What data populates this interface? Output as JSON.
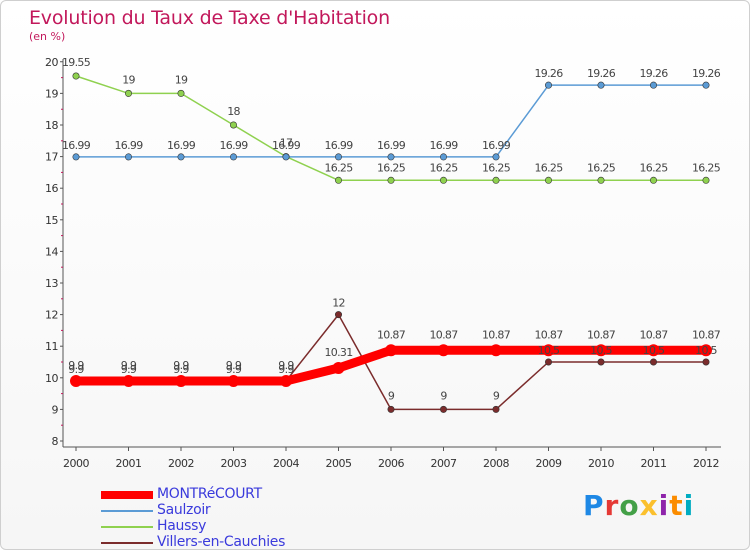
{
  "header": {
    "title": "Evolution du Taux de Taxe d'Habitation",
    "subtitle": "(en %)"
  },
  "chart_data": {
    "type": "line",
    "x": [
      "2000",
      "2001",
      "2002",
      "2003",
      "2004",
      "2005",
      "2006",
      "2007",
      "2008",
      "2009",
      "2010",
      "2011",
      "2012"
    ],
    "ylim": [
      8,
      20
    ],
    "yticks": [
      "8",
      "9",
      "10",
      "11",
      "12",
      "13",
      "14",
      "15",
      "16",
      "17",
      "18",
      "19",
      "20"
    ],
    "grid": false,
    "legend_position": "bottom-left",
    "series": [
      {
        "name": "MONTRéCOURT",
        "color": "#ff0000",
        "values": [
          9.9,
          9.9,
          9.9,
          9.9,
          9.9,
          10.31,
          10.87,
          10.87,
          10.87,
          10.87,
          10.87,
          10.87,
          10.87
        ],
        "labels": [
          "9.9",
          "9.9",
          "9.9",
          "9.9",
          "9.9",
          "10.31",
          "10.87",
          "10.87",
          "10.87",
          "10.87",
          "10.87",
          "10.87",
          "10.87"
        ]
      },
      {
        "name": "Saulzoir",
        "color": "#5b9bd5",
        "values": [
          16.99,
          16.99,
          16.99,
          16.99,
          16.99,
          16.99,
          16.99,
          16.99,
          16.99,
          19.26,
          19.26,
          19.26,
          19.26
        ],
        "labels": [
          "16.99",
          "16.99",
          "16.99",
          "16.99",
          "16.99",
          "16.99",
          "16.99",
          "16.99",
          "16.99",
          "19.26",
          "19.26",
          "19.26",
          "19.26"
        ]
      },
      {
        "name": "Haussy",
        "color": "#8fd14f",
        "values": [
          19.55,
          19,
          19,
          18,
          17,
          16.25,
          16.25,
          16.25,
          16.25,
          16.25,
          16.25,
          16.25,
          16.25
        ],
        "labels": [
          "19.55",
          "19",
          "19",
          "18",
          "17",
          "16.25",
          "16.25",
          "16.25",
          "16.25",
          "16.25",
          "16.25",
          "16.25",
          "16.25"
        ]
      },
      {
        "name": "Villers-en-Cauchies",
        "color": "#7b2c2c",
        "values": [
          9.9,
          9.9,
          9.9,
          9.9,
          9.9,
          12,
          9,
          9,
          9,
          10.5,
          10.5,
          10.5,
          10.5
        ],
        "labels": [
          "9.9",
          "9.9",
          "9.9",
          "9.9",
          "9.9",
          "12",
          "9",
          "9",
          "9",
          "10.5",
          "10.5",
          "10.5",
          "10.5"
        ]
      }
    ]
  },
  "logo": {
    "letters": [
      "P",
      "r",
      "o",
      "x",
      "i",
      "t",
      "i"
    ],
    "colors": [
      "#1e88e5",
      "#e53935",
      "#43a047",
      "#fbc02d",
      "#8e24aa",
      "#fb8c00",
      "#00acc1"
    ]
  }
}
